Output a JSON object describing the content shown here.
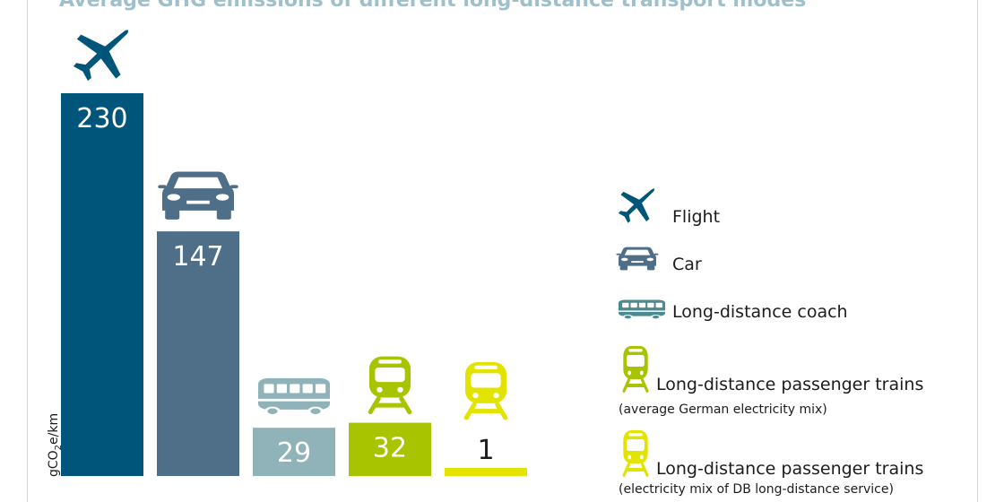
{
  "chart_data": {
    "type": "bar",
    "title": "Average GHG emissions of different long-distance transport modes",
    "ylabel_prefix": "gCO",
    "ylabel_sub": "2",
    "ylabel_suffix": "e/km",
    "categories": [
      "Flight",
      "Car",
      "Long-distance coach",
      "Long-distance passenger trains",
      "Long-distance passenger trains"
    ],
    "values": [
      230,
      147,
      29,
      32,
      1
    ],
    "value_labels": [
      "230",
      "147",
      "29",
      "32",
      "1"
    ],
    "bar_colors": [
      "#00557a",
      "#4f6f88",
      "#8fb3b9",
      "#a8c400",
      "#e2e400"
    ],
    "label_colors": [
      "#ffffff",
      "#ffffff",
      "#ffffff",
      "#ffffff",
      "#1c1c1c"
    ],
    "icons": [
      "plane-icon",
      "car-icon",
      "bus-icon",
      "train-icon",
      "train-icon"
    ],
    "legend": [
      {
        "label": "Flight",
        "sub": "",
        "icon": "plane-icon",
        "color": "#00557a"
      },
      {
        "label": "Car",
        "sub": "",
        "icon": "car-icon",
        "color": "#4f6f88"
      },
      {
        "label": "Long-distance coach",
        "sub": "",
        "icon": "bus-icon",
        "color": "#4b8a92"
      },
      {
        "label": "Long-distance passenger trains",
        "sub": "(average German electricity mix)",
        "icon": "train-icon",
        "color": "#a8c400"
      },
      {
        "label": "Long-distance passenger trains",
        "sub": "(electricity mix of DB long-distance service)",
        "icon": "train-icon",
        "color": "#e2e400"
      }
    ]
  }
}
